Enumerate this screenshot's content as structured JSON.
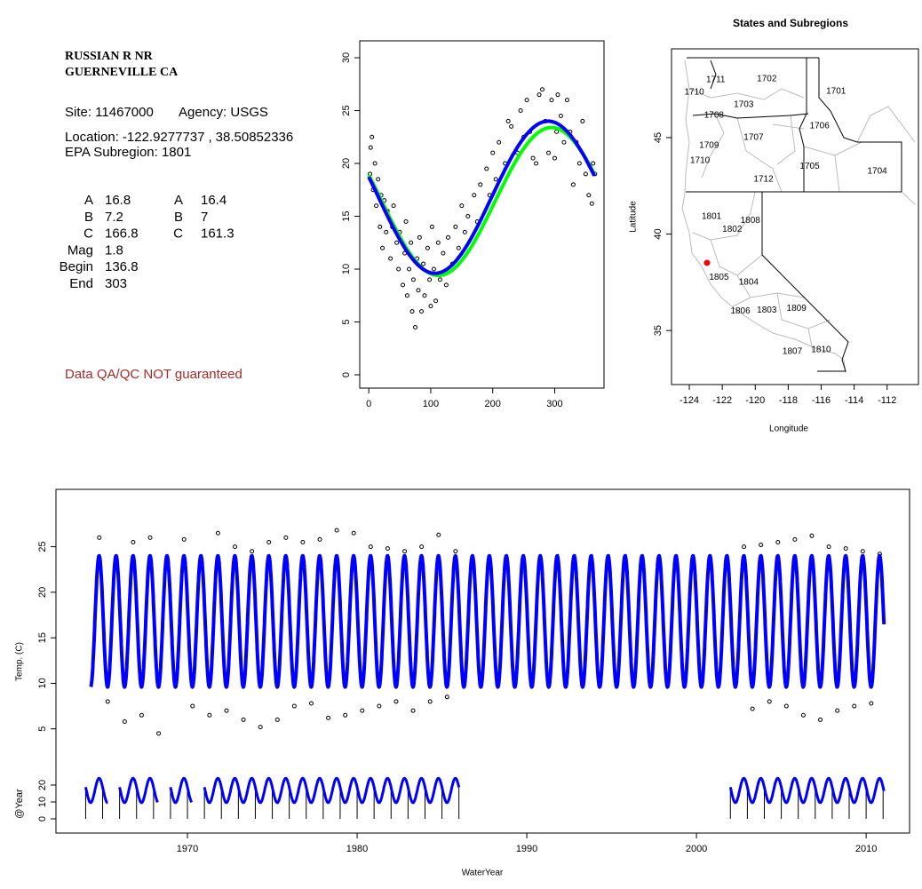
{
  "site_info": {
    "title": [
      "RUSSIAN R NR",
      "GUERNEVILLE CA"
    ],
    "site": "Site: 11467000",
    "agency": "Agency: USGS",
    "location_label": "Location:",
    "longitude": -122.9277737,
    "location_separator": ",",
    "latitude": 38.50852336,
    "subregion": "EPA Subregion: 1801",
    "parameters": [
      {
        "label": "A",
        "values": [
          16.8,
          16.4
        ]
      },
      {
        "label": "B",
        "values": [
          7.2,
          7
        ]
      },
      {
        "label": "C",
        "values": [
          166.8,
          161.3
        ]
      },
      {
        "label": "Mag",
        "values": [
          1.8
        ]
      },
      {
        "label": "Begin",
        "values": [
          136.8
        ]
      },
      {
        "label": "End",
        "values": [
          303
        ]
      }
    ],
    "note": "Data QA/QC NOT guaranteed"
  },
  "chart_data": [
    {
      "type": "scatter",
      "x": [
        2,
        3,
        5,
        7,
        10,
        12,
        15,
        18,
        20,
        22,
        25,
        28,
        30,
        35,
        38,
        40,
        45,
        48,
        50,
        55,
        58,
        60,
        62,
        65,
        68,
        70,
        72,
        75,
        78,
        80,
        82,
        85,
        88,
        90,
        95,
        98,
        100,
        102,
        105,
        108,
        112,
        115,
        120,
        125,
        128,
        135,
        140,
        145,
        150,
        155,
        160,
        170,
        175,
        180,
        190,
        195,
        200,
        205,
        210,
        220,
        225,
        230,
        240,
        245,
        250,
        255,
        260,
        265,
        270,
        275,
        280,
        285,
        290,
        295,
        300,
        303,
        305,
        310,
        315,
        320,
        325,
        330,
        335,
        340,
        345,
        350,
        355,
        360,
        362,
        365
      ],
      "y": [
        19,
        21.5,
        22.5,
        17.5,
        20,
        16,
        18.5,
        14,
        17,
        12,
        16.5,
        13.5,
        15.5,
        11,
        14,
        16,
        12.5,
        10,
        13.5,
        8.5,
        11.5,
        14.5,
        7.5,
        10,
        12.5,
        6,
        9,
        4.5,
        11,
        8,
        13,
        6,
        10.5,
        7.5,
        12,
        9,
        6.5,
        14,
        10,
        7,
        12.5,
        9,
        11.5,
        8.5,
        13,
        10.5,
        14,
        12,
        16,
        13.5,
        15,
        17,
        14.5,
        18,
        19.5,
        17,
        21,
        18.5,
        22,
        20,
        24,
        23.5,
        21,
        25,
        22.5,
        26,
        23,
        20.5,
        20,
        26.5,
        27,
        24,
        21,
        26,
        20.5,
        23,
        26.5,
        24.5,
        22,
        26,
        23,
        18,
        22,
        20,
        24,
        19,
        17,
        16.2,
        20,
        19
      ],
      "xlim": [
        -14.6,
        379.6
      ],
      "ylim": [
        -1.26,
        31.6
      ],
      "xticks": [
        0,
        100,
        200,
        300
      ],
      "yticks": [
        0,
        5,
        10,
        15,
        20,
        25,
        30
      ],
      "point_color": "#000000",
      "fit_colors": [
        "#0000ff",
        "#00ff00"
      ]
    },
    {
      "type": "map",
      "title": "States and Subregions",
      "xlabel": "Longitude",
      "ylabel": "Latitude",
      "xlim": [
        -125.08,
        -110.1
      ],
      "ylim": [
        32.2,
        49.6
      ],
      "xticks": [
        -124,
        -122,
        -120,
        -118,
        -116,
        -114,
        -112
      ],
      "yticks": [
        35,
        40,
        45
      ],
      "regions": [
        {
          "label": "1711",
          "x": -122.4,
          "y": 48.0
        },
        {
          "label": "1710",
          "x": -123.7,
          "y": 47.35
        },
        {
          "label": "1702",
          "x": -119.3,
          "y": 48.04
        },
        {
          "label": "1701",
          "x": -115.1,
          "y": 47.4
        },
        {
          "label": "1703",
          "x": -120.7,
          "y": 46.7
        },
        {
          "label": "1708",
          "x": -122.5,
          "y": 46.15
        },
        {
          "label": "1706",
          "x": -116.1,
          "y": 45.6
        },
        {
          "label": "1707",
          "x": -120.1,
          "y": 45.0
        },
        {
          "label": "1709",
          "x": -122.8,
          "y": 44.6
        },
        {
          "label": "1710",
          "x": -123.35,
          "y": 43.8
        },
        {
          "label": "1705",
          "x": -116.7,
          "y": 43.5
        },
        {
          "label": "1704",
          "x": -112.6,
          "y": 43.25
        },
        {
          "label": "1712",
          "x": -119.5,
          "y": 42.85
        },
        {
          "label": "1801",
          "x": -122.65,
          "y": 40.9
        },
        {
          "label": "1808",
          "x": -120.3,
          "y": 40.7
        },
        {
          "label": "1802",
          "x": -121.4,
          "y": 40.25
        },
        {
          "label": "1805",
          "x": -122.2,
          "y": 37.75
        },
        {
          "label": "1804",
          "x": -120.4,
          "y": 37.5
        },
        {
          "label": "1806",
          "x": -120.9,
          "y": 36.0
        },
        {
          "label": "1803",
          "x": -119.3,
          "y": 36.05
        },
        {
          "label": "1809",
          "x": -117.5,
          "y": 36.15
        },
        {
          "label": "1810",
          "x": -116.0,
          "y": 34.0
        },
        {
          "label": "1807",
          "x": -117.75,
          "y": 33.9
        }
      ],
      "site_color": "#ff0000"
    },
    {
      "type": "timeseries",
      "xlabel": "WaterYear",
      "ylabel": "Temp. (C)",
      "y2label": "@Year",
      "x": [
        1964.8,
        1966.8,
        1967.8,
        1969.8,
        1971.8,
        1972.8,
        1973.8,
        1974.8,
        1975.8,
        1976.8,
        1977.8,
        1978.8,
        1979.8,
        1980.8,
        1981.8,
        1982.8,
        1983.8,
        1984.8,
        1985.8,
        2002.8,
        2003.8,
        2004.8,
        2005.8,
        2006.8,
        2007.8,
        2008.8,
        2009.8,
        2010.8,
        1965.3,
        1966.3,
        1967.3,
        1968.3,
        1970.3,
        1971.3,
        1972.3,
        1973.3,
        1974.3,
        1975.3,
        1976.3,
        1977.3,
        1978.3,
        1979.3,
        1980.3,
        1981.3,
        1982.3,
        1983.3,
        1984.3,
        1985.3,
        2003.3,
        2004.3,
        2005.3,
        2006.3,
        2007.3,
        2008.3,
        2009.3,
        2010.3
      ],
      "y": [
        26,
        25.5,
        26,
        25.8,
        26.5,
        25,
        24.5,
        25.5,
        26,
        25.5,
        25.8,
        26.8,
        26.5,
        25,
        24.8,
        24.5,
        25,
        26.3,
        24.5,
        25,
        25.2,
        25.5,
        25.8,
        26.2,
        25,
        24.8,
        24.5,
        24.2,
        8,
        5.8,
        6.5,
        4.5,
        7.5,
        6.5,
        7,
        6,
        5.2,
        6,
        7.5,
        7.8,
        6.2,
        6.5,
        7,
        7.5,
        8,
        7,
        8,
        8.5,
        7.2,
        8,
        7.5,
        6.5,
        6,
        7,
        7.5,
        7.8
      ],
      "xlim": [
        1962.25,
        2012.56
      ],
      "ylim": [
        -6.44,
        31.3
      ],
      "xticks": [
        1970,
        1980,
        1990,
        2000,
        2010
      ],
      "yticks": [
        5,
        10,
        15,
        20,
        25
      ],
      "y2lim": [
        -8.4,
        195
      ],
      "y2ticks": [
        0,
        10,
        20
      ],
      "model_range": [
        1964.3,
        2011.05
      ],
      "record_periods": [
        [
          1964,
          1965.3
        ],
        [
          1966,
          1968.25
        ],
        [
          1969,
          1970.25
        ],
        [
          1971,
          1986
        ],
        [
          2002,
          2011.05
        ]
      ],
      "model_color": "#0000ff",
      "point_color": "#000000"
    }
  ]
}
